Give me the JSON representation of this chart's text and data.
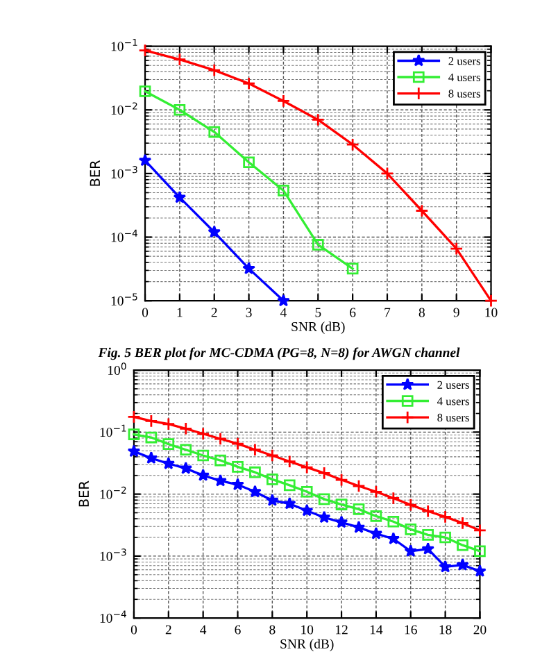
{
  "chart_data": [
    {
      "type": "line",
      "xlabel": "SNR (dB)",
      "ylabel": "BER",
      "log": "y",
      "grid": true,
      "legend": "top right",
      "annotations": [
        "Fig. 5 BER plot for MC-CDMA (PG=8, N=8) for AWGN channel"
      ],
      "xlim": [
        0,
        10
      ],
      "xticks": [
        0,
        1,
        2,
        3,
        4,
        5,
        6,
        7,
        8,
        9,
        10
      ],
      "ylim": [
        1e-05,
        0.1
      ],
      "yticks": [
        {
          "value": 1e-05,
          "label": "10$^{−5}$"
        },
        {
          "value": 0.0001,
          "label": "10$^{−4}$"
        },
        {
          "value": 0.001,
          "label": "10$^{−3}$"
        },
        {
          "value": 0.01,
          "label": "10$^{−2}$"
        },
        {
          "value": 0.1,
          "label": "10$^{−1}$"
        }
      ],
      "series": [
        {
          "name": "2 users",
          "color": "#0000ff",
          "marker": "star",
          "x": [
            0,
            1,
            2,
            3,
            4
          ],
          "values": [
            0.0016,
            0.00042,
            0.00012,
            3.2e-05,
            1e-05
          ]
        },
        {
          "name": "4 users",
          "color": "#33ee33",
          "marker": "square",
          "x": [
            0,
            1,
            2,
            3,
            4,
            5,
            6
          ],
          "values": [
            0.0196,
            0.01,
            0.0045,
            0.0015,
            0.00054,
            7.6e-05,
            3.2e-05
          ]
        },
        {
          "name": "8 users",
          "color": "#ff0000",
          "marker": "cross",
          "x": [
            0,
            1,
            2,
            3,
            4,
            5,
            6,
            7,
            8,
            9,
            10
          ],
          "values": [
            0.086,
            0.062,
            0.042,
            0.026,
            0.0138,
            0.007,
            0.00285,
            0.001,
            0.00026,
            6.6e-05,
            1e-05
          ]
        }
      ]
    },
    {
      "type": "line",
      "xlabel": "SNR (dB)",
      "ylabel": "BER",
      "log": "y",
      "grid": true,
      "legend": "top right",
      "xlim": [
        0,
        20
      ],
      "xticks": [
        0,
        2,
        4,
        6,
        8,
        10,
        12,
        14,
        16,
        18,
        20
      ],
      "ylim": [
        0.0001,
        1
      ],
      "yticks": [
        {
          "value": 0.0001,
          "label": "10$^{−4}$"
        },
        {
          "value": 0.001,
          "label": "10$^{−3}$"
        },
        {
          "value": 0.01,
          "label": "10$^{−2}$"
        },
        {
          "value": 0.1,
          "label": "10$^{−1}$"
        },
        {
          "value": 1,
          "label": "10$^{0}$"
        }
      ],
      "series": [
        {
          "name": "2 users",
          "color": "#0000ff",
          "marker": "star",
          "x": [
            0,
            1,
            2,
            3,
            4,
            5,
            6,
            7,
            8,
            9,
            10,
            11,
            12,
            13,
            14,
            15,
            16,
            17,
            18,
            19,
            20
          ],
          "values": [
            0.049,
            0.038,
            0.031,
            0.026,
            0.02,
            0.0164,
            0.0142,
            0.0109,
            0.0079,
            0.007,
            0.0054,
            0.0042,
            0.0035,
            0.0029,
            0.0023,
            0.0019,
            0.0012,
            0.0013,
            0.00067,
            0.00072,
            0.00057
          ]
        },
        {
          "name": "4 users",
          "color": "#33ee33",
          "marker": "square",
          "x": [
            0,
            1,
            2,
            3,
            4,
            5,
            6,
            7,
            8,
            9,
            10,
            11,
            12,
            13,
            14,
            15,
            16,
            17,
            18,
            19,
            20
          ],
          "values": [
            0.092,
            0.082,
            0.064,
            0.052,
            0.042,
            0.035,
            0.0275,
            0.0225,
            0.0173,
            0.0139,
            0.0109,
            0.0083,
            0.0068,
            0.0057,
            0.0044,
            0.0036,
            0.0027,
            0.0022,
            0.002,
            0.0015,
            0.0012
          ]
        },
        {
          "name": "8 users",
          "color": "#ff0000",
          "marker": "cross",
          "x": [
            0,
            1,
            2,
            3,
            4,
            5,
            6,
            7,
            8,
            9,
            10,
            11,
            12,
            13,
            14,
            15,
            16,
            17,
            18,
            19,
            20
          ],
          "values": [
            0.176,
            0.151,
            0.135,
            0.114,
            0.094,
            0.078,
            0.065,
            0.052,
            0.042,
            0.0335,
            0.027,
            0.0218,
            0.017,
            0.0135,
            0.0109,
            0.0086,
            0.0067,
            0.0053,
            0.0043,
            0.0034,
            0.0026
          ]
        }
      ]
    }
  ]
}
